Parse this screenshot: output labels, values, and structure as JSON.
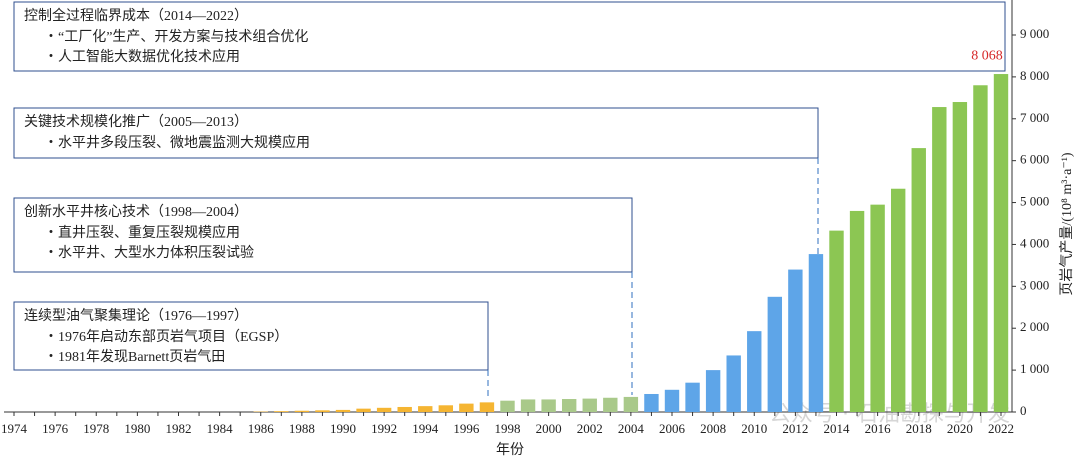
{
  "chart_data": {
    "type": "bar",
    "x_label": "年份",
    "y_label": "页岩气产量/(10⁸ m³·a⁻¹)",
    "categories": [
      "1974",
      null,
      "1976",
      null,
      "1978",
      null,
      "1980",
      null,
      "1982",
      null,
      "1984",
      null,
      "1986",
      null,
      "1988",
      null,
      "1990",
      null,
      "1992",
      null,
      "1994",
      null,
      "1996",
      null,
      "1998",
      null,
      "2000",
      null,
      "2002",
      null,
      "2004",
      null,
      "2006",
      null,
      "2008",
      null,
      "2010",
      null,
      "2012",
      null,
      "2014",
      null,
      "2016",
      null,
      "2018",
      null,
      "2020",
      null,
      "2022"
    ],
    "values": [
      0,
      0,
      0,
      0,
      0,
      0,
      0,
      0,
      0,
      0,
      0,
      0,
      10,
      20,
      30,
      40,
      50,
      80,
      100,
      120,
      140,
      160,
      200,
      230,
      270,
      300,
      300,
      310,
      320,
      340,
      360,
      430,
      530,
      700,
      1000,
      1350,
      1930,
      2750,
      3400,
      3770,
      4330,
      4800,
      4950,
      5330,
      6300,
      7280,
      7400,
      7800,
      8068
    ],
    "value_labels": [
      null,
      null,
      null,
      null,
      null,
      null,
      null,
      null,
      null,
      null,
      null,
      null,
      null,
      null,
      null,
      null,
      null,
      null,
      null,
      null,
      null,
      null,
      null,
      null,
      null,
      null,
      null,
      null,
      null,
      null,
      null,
      null,
      null,
      null,
      null,
      null,
      null,
      null,
      null,
      null,
      null,
      null,
      null,
      null,
      null,
      null,
      null,
      null,
      "8 068"
    ],
    "colors": [
      "#f5b532",
      "#f5b532",
      "#f5b532",
      "#f5b532",
      "#f5b532",
      "#f5b532",
      "#f5b532",
      "#f5b532",
      "#f5b532",
      "#f5b532",
      "#f5b532",
      "#f5b532",
      "#f5b532",
      "#f5b532",
      "#f5b532",
      "#f5b532",
      "#f5b532",
      "#f5b532",
      "#f5b532",
      "#f5b532",
      "#f5b532",
      "#f5b532",
      "#f5b532",
      "#f5b532",
      "#a9c98a",
      "#a9c98a",
      "#a9c98a",
      "#a9c98a",
      "#a9c98a",
      "#a9c98a",
      "#a9c98a",
      "#5ea5e8",
      "#5ea5e8",
      "#5ea5e8",
      "#5ea5e8",
      "#5ea5e8",
      "#5ea5e8",
      "#5ea5e8",
      "#5ea5e8",
      "#5ea5e8",
      "#8cc653",
      "#8cc653",
      "#8cc653",
      "#8cc653",
      "#8cc653",
      "#8cc653",
      "#8cc653",
      "#8cc653",
      "#8cc653"
    ],
    "ylim": [
      0,
      9000
    ],
    "yticks": [
      0,
      {
        "value": 1000,
        "label": "1 000"
      },
      {
        "value": 2000,
        "label": "2 000"
      },
      {
        "value": 3000,
        "label": "3 000"
      },
      {
        "value": 4000,
        "label": "4 000"
      },
      {
        "value": 5000,
        "label": "5 000"
      },
      {
        "value": 6000,
        "label": "6 000"
      },
      {
        "value": 7000,
        "label": "7 000"
      },
      {
        "value": 8000,
        "label": "8 000"
      },
      {
        "value": 9000,
        "label": "9 000"
      }
    ],
    "annotations": [
      {
        "title": "控制全过程临界成本（2014—2022）",
        "items": [
          "・“工厂化”生产、开发方案与技术组合优化",
          "・人工智能大数据优化技术应用"
        ]
      },
      {
        "title": "关键技术规模化推广（2005—2013）",
        "items": [
          "・水平井多段压裂、微地震监测大规模应用"
        ]
      },
      {
        "title": "创新水平井核心技术（1998—2004）",
        "items": [
          "・直井压裂、重复压裂规模应用",
          "・水平井、大型水力体积压裂试验"
        ]
      },
      {
        "title": "连续型油气聚集理论（1976—1997）",
        "items": [
          "・1976年启动东部页岩气项目（EGSP）",
          "・1981年发现Barnett页岩气田"
        ]
      }
    ],
    "watermark": "公众号 · 石油勘探与开发"
  }
}
